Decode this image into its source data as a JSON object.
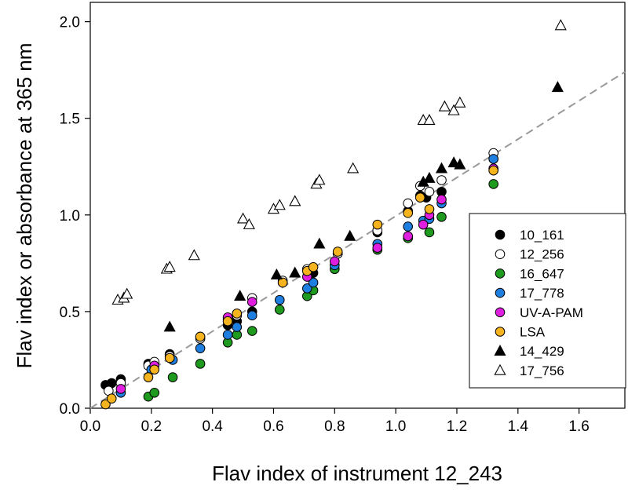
{
  "chart_data": {
    "type": "scatter",
    "title": "",
    "xlabel": "Flav index of instrument 12_243",
    "ylabel": "Flav index or absorbance at 365 nm",
    "xlim": [
      0.0,
      1.75
    ],
    "ylim": [
      0.0,
      2.1
    ],
    "xticks": [
      "0.0",
      "0.2",
      "0.4",
      "0.6",
      "0.8",
      "1.0",
      "1.2",
      "1.4",
      "1.6"
    ],
    "yticks": [
      "0.0",
      "0.5",
      "1.0",
      "1.5",
      "2.0"
    ],
    "legend_position": "lower-right",
    "grid": false,
    "reference_line": {
      "style": "dashed",
      "color": "#999999",
      "from": [
        0.0,
        0.0
      ],
      "to": [
        1.75,
        1.74
      ]
    },
    "series": [
      {
        "name": "10_161",
        "marker": "circle",
        "fill": "#000000",
        "stroke": "#000000",
        "points": [
          [
            0.05,
            0.12
          ],
          [
            0.07,
            0.13
          ],
          [
            0.1,
            0.15
          ],
          [
            0.19,
            0.23
          ],
          [
            0.21,
            0.23
          ],
          [
            0.26,
            0.28
          ],
          [
            0.36,
            0.37
          ],
          [
            0.45,
            0.43
          ],
          [
            0.48,
            0.45
          ],
          [
            0.53,
            0.5
          ],
          [
            0.63,
            0.65
          ],
          [
            0.73,
            0.7
          ],
          [
            0.81,
            0.8
          ],
          [
            0.94,
            0.91
          ],
          [
            1.04,
            1.02
          ],
          [
            1.08,
            1.1
          ],
          [
            1.1,
            1.09
          ],
          [
            1.15,
            1.12
          ],
          [
            1.32,
            1.29
          ]
        ]
      },
      {
        "name": "12_256",
        "marker": "circle",
        "fill": "#ffffff",
        "stroke": "#000000",
        "points": [
          [
            0.06,
            0.09
          ],
          [
            0.1,
            0.13
          ],
          [
            0.19,
            0.22
          ],
          [
            0.21,
            0.24
          ],
          [
            0.26,
            0.27
          ],
          [
            0.36,
            0.36
          ],
          [
            0.45,
            0.46
          ],
          [
            0.48,
            0.48
          ],
          [
            0.53,
            0.57
          ],
          [
            0.63,
            0.66
          ],
          [
            0.71,
            0.72
          ],
          [
            0.81,
            0.8
          ],
          [
            0.94,
            0.92
          ],
          [
            1.04,
            1.06
          ],
          [
            1.08,
            1.15
          ],
          [
            1.11,
            1.12
          ],
          [
            1.15,
            1.18
          ],
          [
            1.32,
            1.32
          ]
        ]
      },
      {
        "name": "16_647",
        "marker": "circle",
        "fill": "#1e9a1e",
        "stroke": "#000000",
        "points": [
          [
            0.19,
            0.06
          ],
          [
            0.21,
            0.08
          ],
          [
            0.27,
            0.16
          ],
          [
            0.36,
            0.23
          ],
          [
            0.45,
            0.34
          ],
          [
            0.48,
            0.38
          ],
          [
            0.53,
            0.4
          ],
          [
            0.62,
            0.51
          ],
          [
            0.71,
            0.58
          ],
          [
            0.73,
            0.61
          ],
          [
            0.8,
            0.72
          ],
          [
            0.94,
            0.82
          ],
          [
            1.04,
            0.88
          ],
          [
            1.11,
            0.91
          ],
          [
            1.15,
            0.99
          ],
          [
            1.32,
            1.16
          ]
        ]
      },
      {
        "name": "17_778",
        "marker": "circle",
        "fill": "#1e7fe0",
        "stroke": "#000000",
        "points": [
          [
            0.1,
            0.08
          ],
          [
            0.2,
            0.2
          ],
          [
            0.27,
            0.25
          ],
          [
            0.36,
            0.31
          ],
          [
            0.45,
            0.38
          ],
          [
            0.48,
            0.42
          ],
          [
            0.53,
            0.48
          ],
          [
            0.62,
            0.56
          ],
          [
            0.71,
            0.62
          ],
          [
            0.73,
            0.65
          ],
          [
            0.8,
            0.74
          ],
          [
            0.94,
            0.85
          ],
          [
            1.04,
            0.94
          ],
          [
            1.09,
            0.97
          ],
          [
            1.11,
            0.98
          ],
          [
            1.15,
            1.06
          ],
          [
            1.32,
            1.29
          ]
        ]
      },
      {
        "name": "UV-A-PAM",
        "marker": "circle",
        "fill": "#e01ee0",
        "stroke": "#000000",
        "points": [
          [
            0.1,
            0.1
          ],
          [
            0.21,
            0.22
          ],
          [
            0.45,
            0.47
          ],
          [
            0.53,
            0.55
          ],
          [
            0.71,
            0.68
          ],
          [
            0.8,
            0.76
          ],
          [
            0.94,
            0.83
          ],
          [
            1.04,
            0.89
          ],
          [
            1.09,
            0.95
          ],
          [
            1.11,
            1.0
          ],
          [
            1.15,
            1.08
          ],
          [
            1.32,
            1.24
          ]
        ]
      },
      {
        "name": "LSA",
        "marker": "circle",
        "fill": "#f5b41e",
        "stroke": "#000000",
        "points": [
          [
            0.05,
            0.02
          ],
          [
            0.07,
            0.05
          ],
          [
            0.19,
            0.16
          ],
          [
            0.21,
            0.2
          ],
          [
            0.26,
            0.26
          ],
          [
            0.36,
            0.37
          ],
          [
            0.45,
            0.45
          ],
          [
            0.48,
            0.49
          ],
          [
            0.63,
            0.65
          ],
          [
            0.71,
            0.71
          ],
          [
            0.73,
            0.73
          ],
          [
            0.81,
            0.81
          ],
          [
            0.94,
            0.95
          ],
          [
            1.04,
            1.01
          ],
          [
            1.08,
            1.09
          ],
          [
            1.11,
            1.03
          ],
          [
            1.32,
            1.23
          ]
        ]
      },
      {
        "name": "14_429",
        "marker": "triangle",
        "fill": "#000000",
        "stroke": "#000000",
        "points": [
          [
            0.26,
            0.42
          ],
          [
            0.49,
            0.58
          ],
          [
            0.61,
            0.69
          ],
          [
            0.67,
            0.7
          ],
          [
            0.75,
            0.85
          ],
          [
            0.85,
            0.89
          ],
          [
            1.09,
            1.17
          ],
          [
            1.11,
            1.19
          ],
          [
            1.15,
            1.24
          ],
          [
            1.19,
            1.27
          ],
          [
            1.21,
            1.26
          ],
          [
            1.53,
            1.66
          ]
        ]
      },
      {
        "name": "17_756",
        "marker": "triangle",
        "fill": "#ffffff",
        "stroke": "#000000",
        "points": [
          [
            0.09,
            0.56
          ],
          [
            0.11,
            0.57
          ],
          [
            0.12,
            0.59
          ],
          [
            0.25,
            0.72
          ],
          [
            0.26,
            0.73
          ],
          [
            0.34,
            0.79
          ],
          [
            0.5,
            0.98
          ],
          [
            0.52,
            0.95
          ],
          [
            0.6,
            1.03
          ],
          [
            0.62,
            1.05
          ],
          [
            0.67,
            1.07
          ],
          [
            0.74,
            1.16
          ],
          [
            0.75,
            1.18
          ],
          [
            0.86,
            1.24
          ],
          [
            1.09,
            1.49
          ],
          [
            1.11,
            1.49
          ],
          [
            1.16,
            1.56
          ],
          [
            1.19,
            1.54
          ],
          [
            1.21,
            1.58
          ],
          [
            1.54,
            1.98
          ]
        ]
      }
    ]
  }
}
